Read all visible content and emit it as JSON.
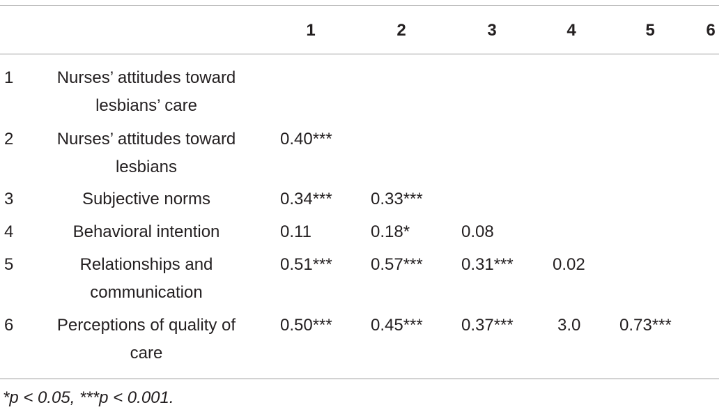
{
  "table": {
    "columns": [
      "1",
      "2",
      "3",
      "4",
      "5",
      "6"
    ],
    "rows": [
      {
        "index": "1",
        "variable": "Nurses’ attitudes toward lesbians’ care",
        "values": [
          "",
          "",
          "",
          "",
          ""
        ]
      },
      {
        "index": "2",
        "variable": "Nurses’ attitudes toward lesbians",
        "values": [
          "0.40***",
          "",
          "",
          "",
          ""
        ]
      },
      {
        "index": "3",
        "variable": "Subjective norms",
        "values": [
          "0.34***",
          "0.33***",
          "",
          "",
          ""
        ]
      },
      {
        "index": "4",
        "variable": "Behavioral intention",
        "values": [
          "0.11",
          "0.18*",
          "0.08",
          "",
          ""
        ]
      },
      {
        "index": "5",
        "variable": "Relationships and communication",
        "values": [
          "0.51***",
          "0.57***",
          "0.31***",
          "0.02",
          ""
        ]
      },
      {
        "index": "6",
        "variable": "Perceptions of quality of care",
        "values": [
          "0.50***",
          "0.45***",
          "0.37***",
          "3.0",
          "0.73***"
        ]
      }
    ]
  },
  "footnote": "*p < 0.05, ***p < 0.001."
}
